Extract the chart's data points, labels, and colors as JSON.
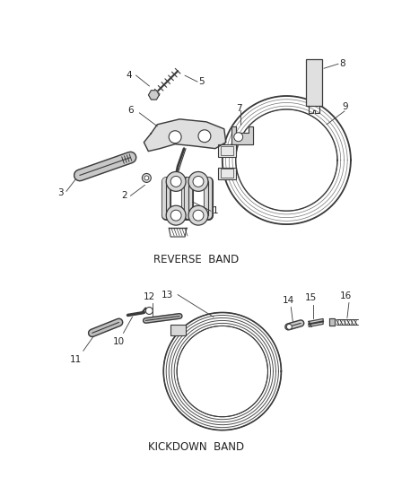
{
  "background_color": "#ffffff",
  "line_color": "#3a3a3a",
  "text_color": "#222222",
  "reverse_band_label": "REVERSE  BAND",
  "kickdown_band_label": "KICKDOWN  BAND",
  "label_fontsize": 7.5,
  "section_label_fontsize": 8.5,
  "fig_w": 4.38,
  "fig_h": 5.33,
  "dpi": 100
}
